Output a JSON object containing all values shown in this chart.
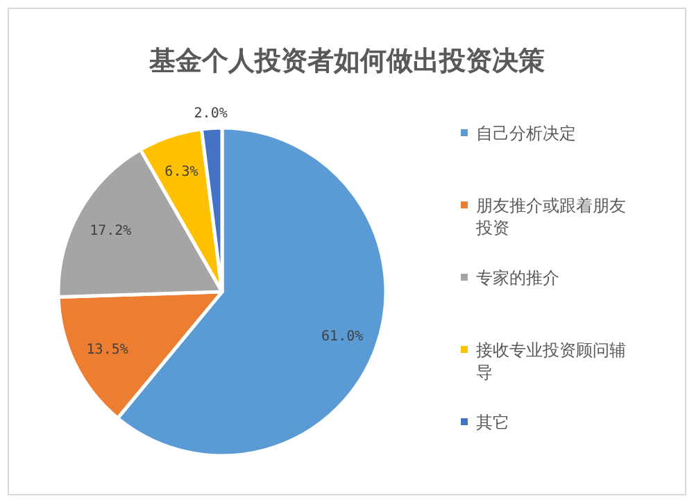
{
  "chart_data": {
    "type": "pie",
    "title": "基金个人投资者如何做出投资决策",
    "categories": [
      "自己分析决定",
      "朋友推介或跟着朋友投资",
      "专家的推介",
      "接收专业投资顾问辅导",
      "其它"
    ],
    "values": [
      61.0,
      13.5,
      17.2,
      6.3,
      2.0
    ],
    "colors": [
      "#5b9bd5",
      "#ed7d31",
      "#a5a5a5",
      "#ffc000",
      "#4472c4"
    ],
    "value_labels": [
      "61.0%",
      "13.5%",
      "17.2%",
      "6.3%",
      "2.0%"
    ],
    "legend": "right"
  }
}
